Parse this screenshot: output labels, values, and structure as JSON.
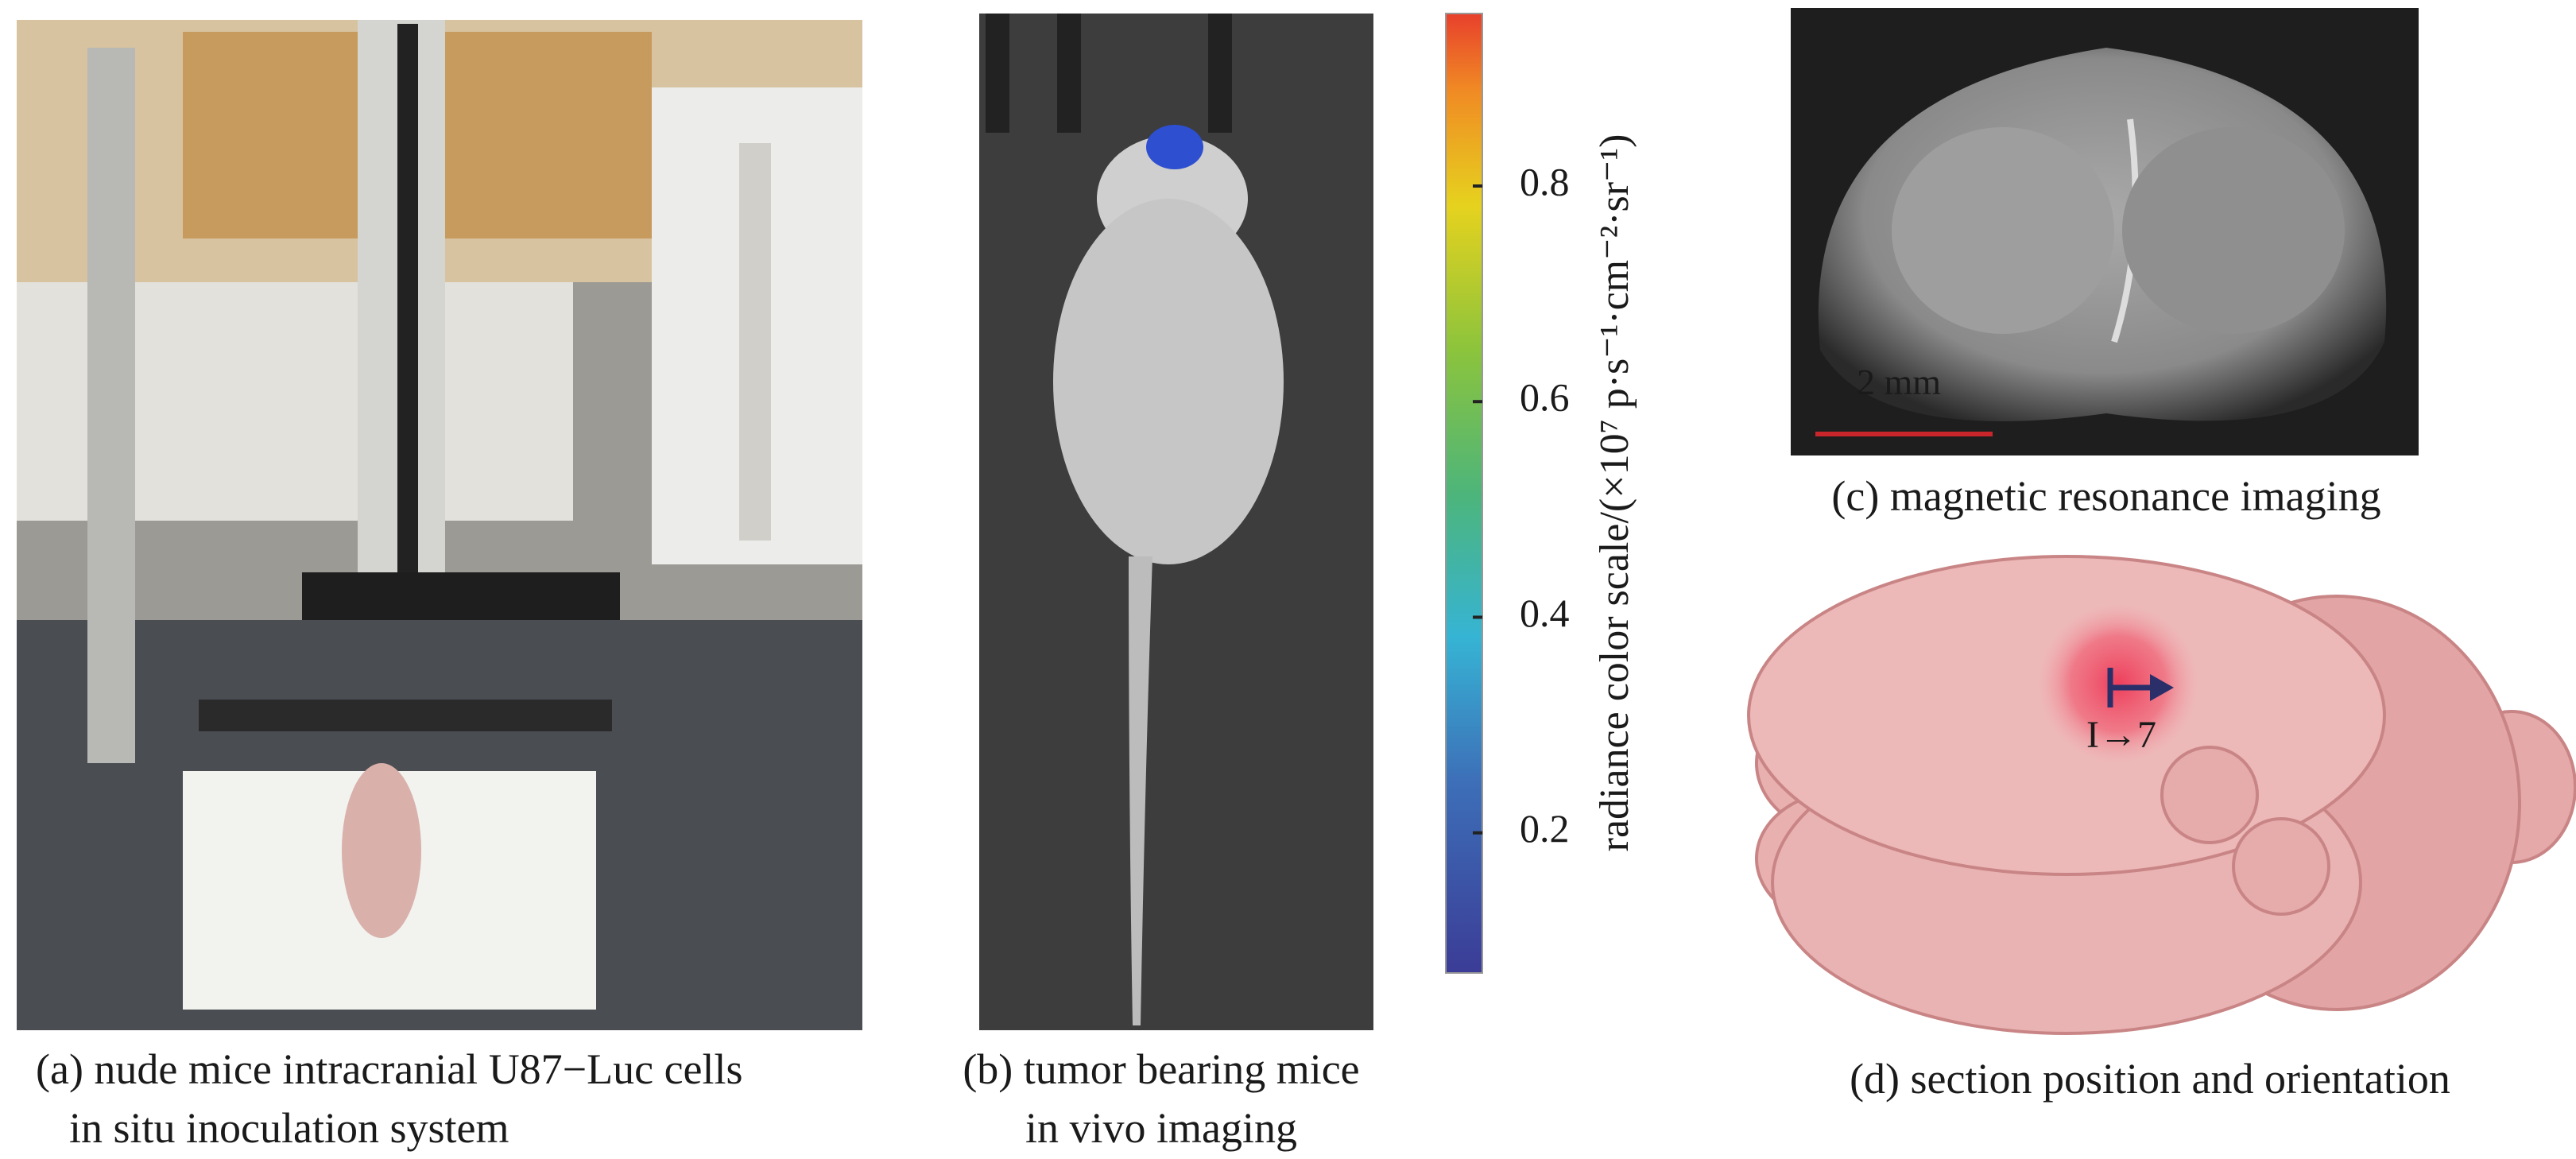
{
  "panel_a": {
    "caption": [
      "(a) nude mice intracranial U87−Luc cells",
      "in situ inoculation system"
    ]
  },
  "panel_b": {
    "caption": [
      "(b) tumor bearing mice",
      "in vivo imaging"
    ]
  },
  "colorbar": {
    "label": "radiance color scale/(×10⁷ p·s⁻¹·cm⁻²·sr⁻¹)",
    "lim": [
      0.07,
      0.96
    ],
    "ticks": [
      0.2,
      0.4,
      0.6,
      0.8
    ]
  },
  "panel_c": {
    "caption": "(c) magnetic resonance imaging",
    "scale_bar_label": "2 mm"
  },
  "panel_d": {
    "caption": "(d) section position and orientation",
    "section_label": "I→7"
  }
}
